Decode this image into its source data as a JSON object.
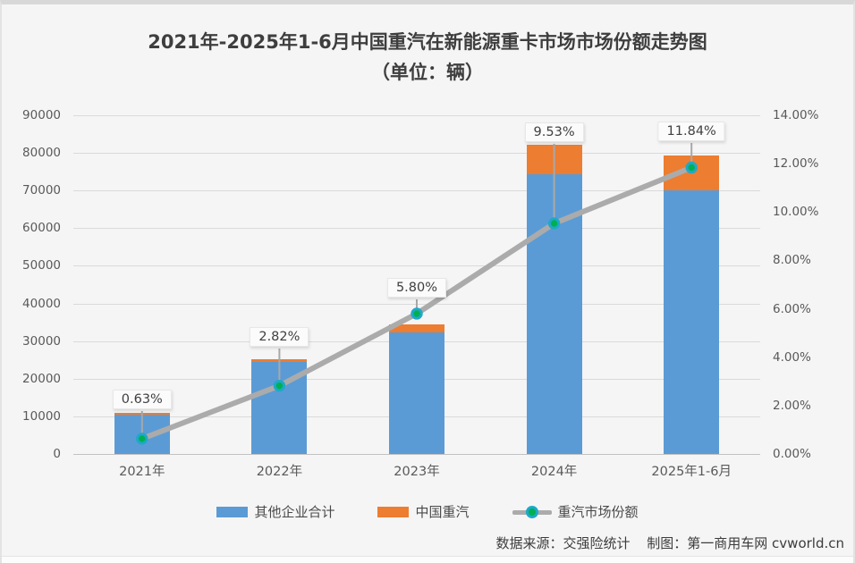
{
  "title": {
    "line1": "2021年-2025年1-6月中国重汽在新能源重卡市场市场份额走势图",
    "line2": "（单位：辆）"
  },
  "chart_data": {
    "type": "bar",
    "subtype": "stacked-bars-with-percent-line",
    "categories": [
      "2021年",
      "2022年",
      "2023年",
      "2024年",
      "2025年1-6月"
    ],
    "series": [
      {
        "name": "其他企业合计",
        "role": "bar",
        "color": "#5b9bd5",
        "values": [
          10450,
          24440,
          32400,
          74400,
          70000
        ]
      },
      {
        "name": "中国重汽",
        "role": "bar",
        "color": "#ed7d31",
        "values": [
          66,
          710,
          2000,
          7840,
          9400
        ]
      },
      {
        "name": "重汽市场份额",
        "role": "line",
        "color": "#ababab",
        "marker_fill": "#00b050",
        "marker_ring": "#1fa8c9",
        "values_percent": [
          0.63,
          2.82,
          5.8,
          9.53,
          11.84
        ],
        "point_labels": [
          "0.63%",
          "2.82%",
          "5.80%",
          "9.53%",
          "11.84%"
        ]
      }
    ],
    "left_axis": {
      "min": 0,
      "max": 90000,
      "step": 10000,
      "ticks": [
        "0",
        "10000",
        "20000",
        "30000",
        "40000",
        "50000",
        "60000",
        "70000",
        "80000",
        "90000"
      ]
    },
    "right_axis": {
      "min": 0,
      "max": 14,
      "step": 2,
      "ticks": [
        "0.00%",
        "2.00%",
        "4.00%",
        "6.00%",
        "8.00%",
        "10.00%",
        "12.00%",
        "14.00%"
      ]
    },
    "grid": true,
    "legend_position": "bottom"
  },
  "legend": {
    "items": [
      {
        "label": "其他企业合计",
        "swatch": "blue-rect"
      },
      {
        "label": "中国重汽",
        "swatch": "orange-rect"
      },
      {
        "label": "重汽市场份额",
        "swatch": "gray-line-green-dot"
      }
    ]
  },
  "footer": {
    "source": "数据来源：交强险统计",
    "credit": "制图：第一商用车网 cvworld.cn"
  },
  "colors": {
    "bar_other": "#5b9bd5",
    "bar_cnhtc": "#ed7d31",
    "share_line": "#ababab",
    "marker_fill": "#00b050",
    "marker_ring": "#1fa8c9",
    "gridline": "#dadada",
    "background": "#f5f5f5",
    "axis_text": "#595959",
    "title_text": "#3e3e3e"
  }
}
